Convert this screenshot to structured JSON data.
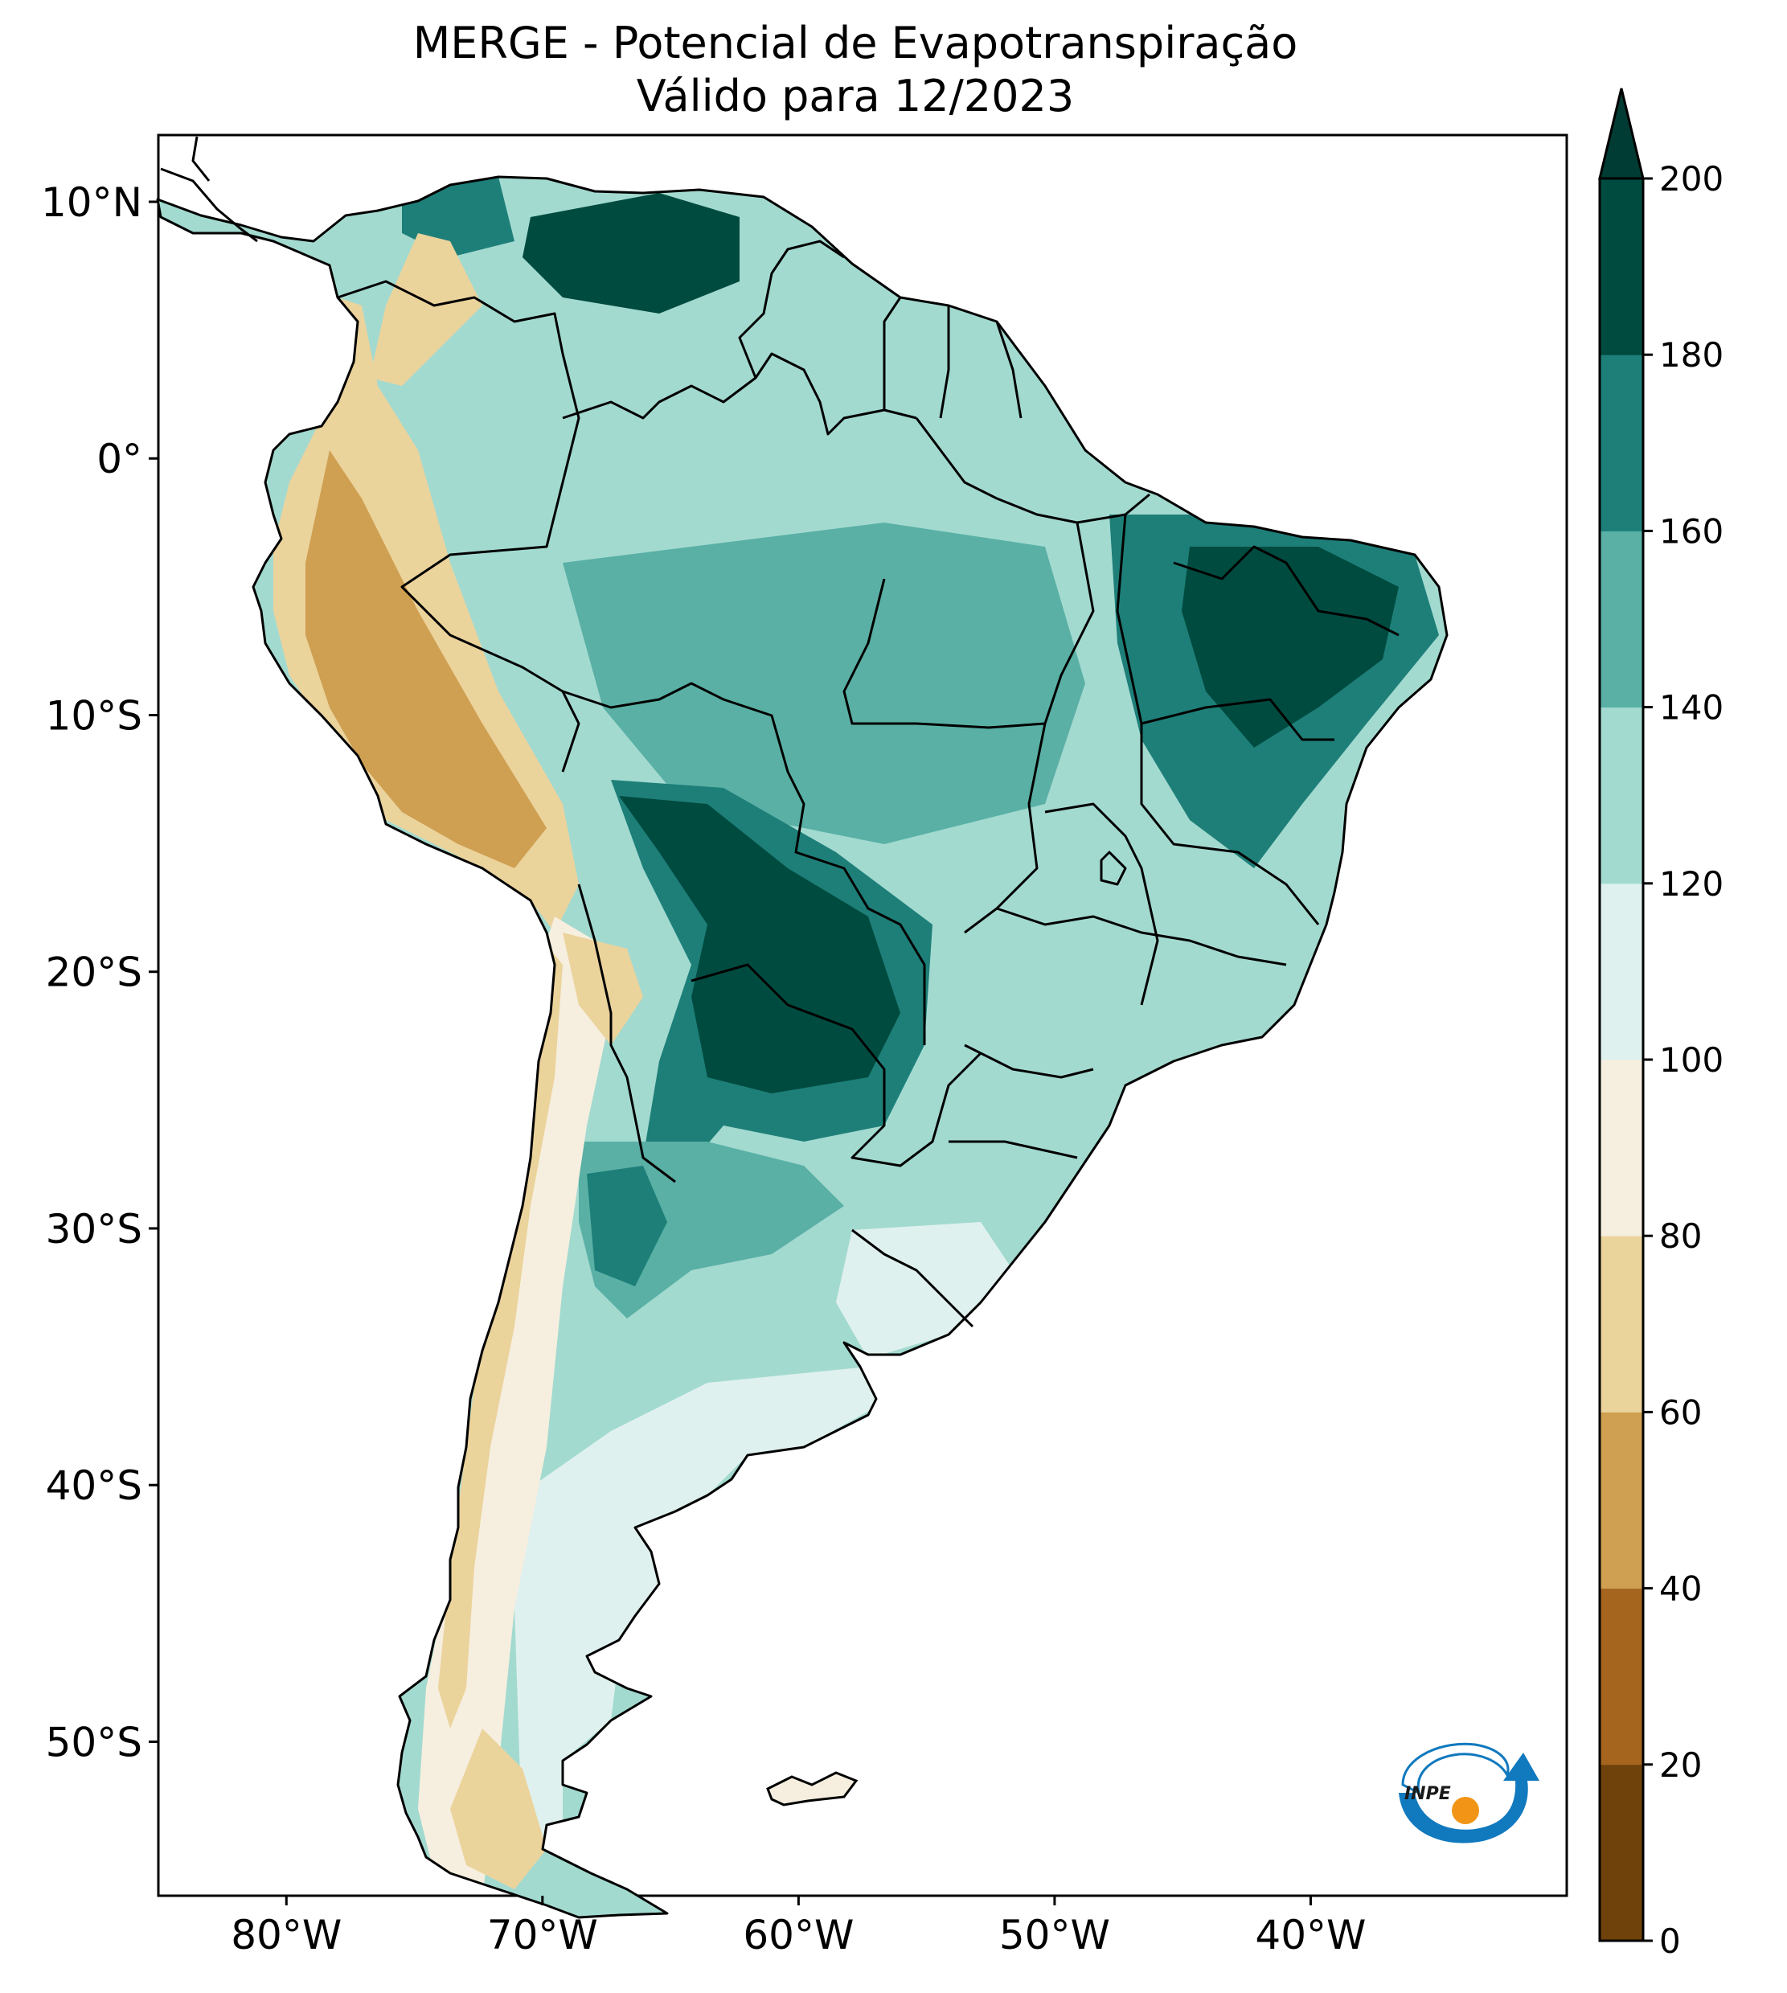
{
  "title": {
    "line1": "MERGE - Potencial de Evapotranspiração",
    "line2": "Válido para 12/2023"
  },
  "map": {
    "lon_ticks": [
      {
        "label": "80°W",
        "value": -80
      },
      {
        "label": "70°W",
        "value": -70
      },
      {
        "label": "60°W",
        "value": -60
      },
      {
        "label": "50°W",
        "value": -50
      },
      {
        "label": "40°W",
        "value": -40
      }
    ],
    "lat_ticks": [
      {
        "label": "10°N",
        "value": 10
      },
      {
        "label": "0°",
        "value": 0
      },
      {
        "label": "10°S",
        "value": -10
      },
      {
        "label": "20°S",
        "value": -20
      },
      {
        "label": "30°S",
        "value": -30
      },
      {
        "label": "40°S",
        "value": -40
      },
      {
        "label": "50°S",
        "value": -50
      }
    ],
    "lon_range": [
      -85,
      -30
    ],
    "lat_range": [
      -56,
      12.6
    ]
  },
  "colorbar": {
    "levels": [
      0,
      20,
      40,
      60,
      80,
      100,
      120,
      140,
      160,
      180,
      200
    ],
    "labels": [
      "0",
      "20",
      "40",
      "60",
      "80",
      "100",
      "120",
      "140",
      "160",
      "180",
      "200"
    ],
    "colors": [
      "#6e420a",
      "#a5651f",
      "#cfa052",
      "#ebd39c",
      "#f6efdf",
      "#dff1ee",
      "#a3dad0",
      "#5ab0a5",
      "#1e7f79",
      "#004b3f"
    ],
    "extend_color": "#003c33"
  },
  "logo": {
    "text": "INPE",
    "colors": {
      "blue": "#1179be",
      "orange": "#f29516"
    }
  }
}
